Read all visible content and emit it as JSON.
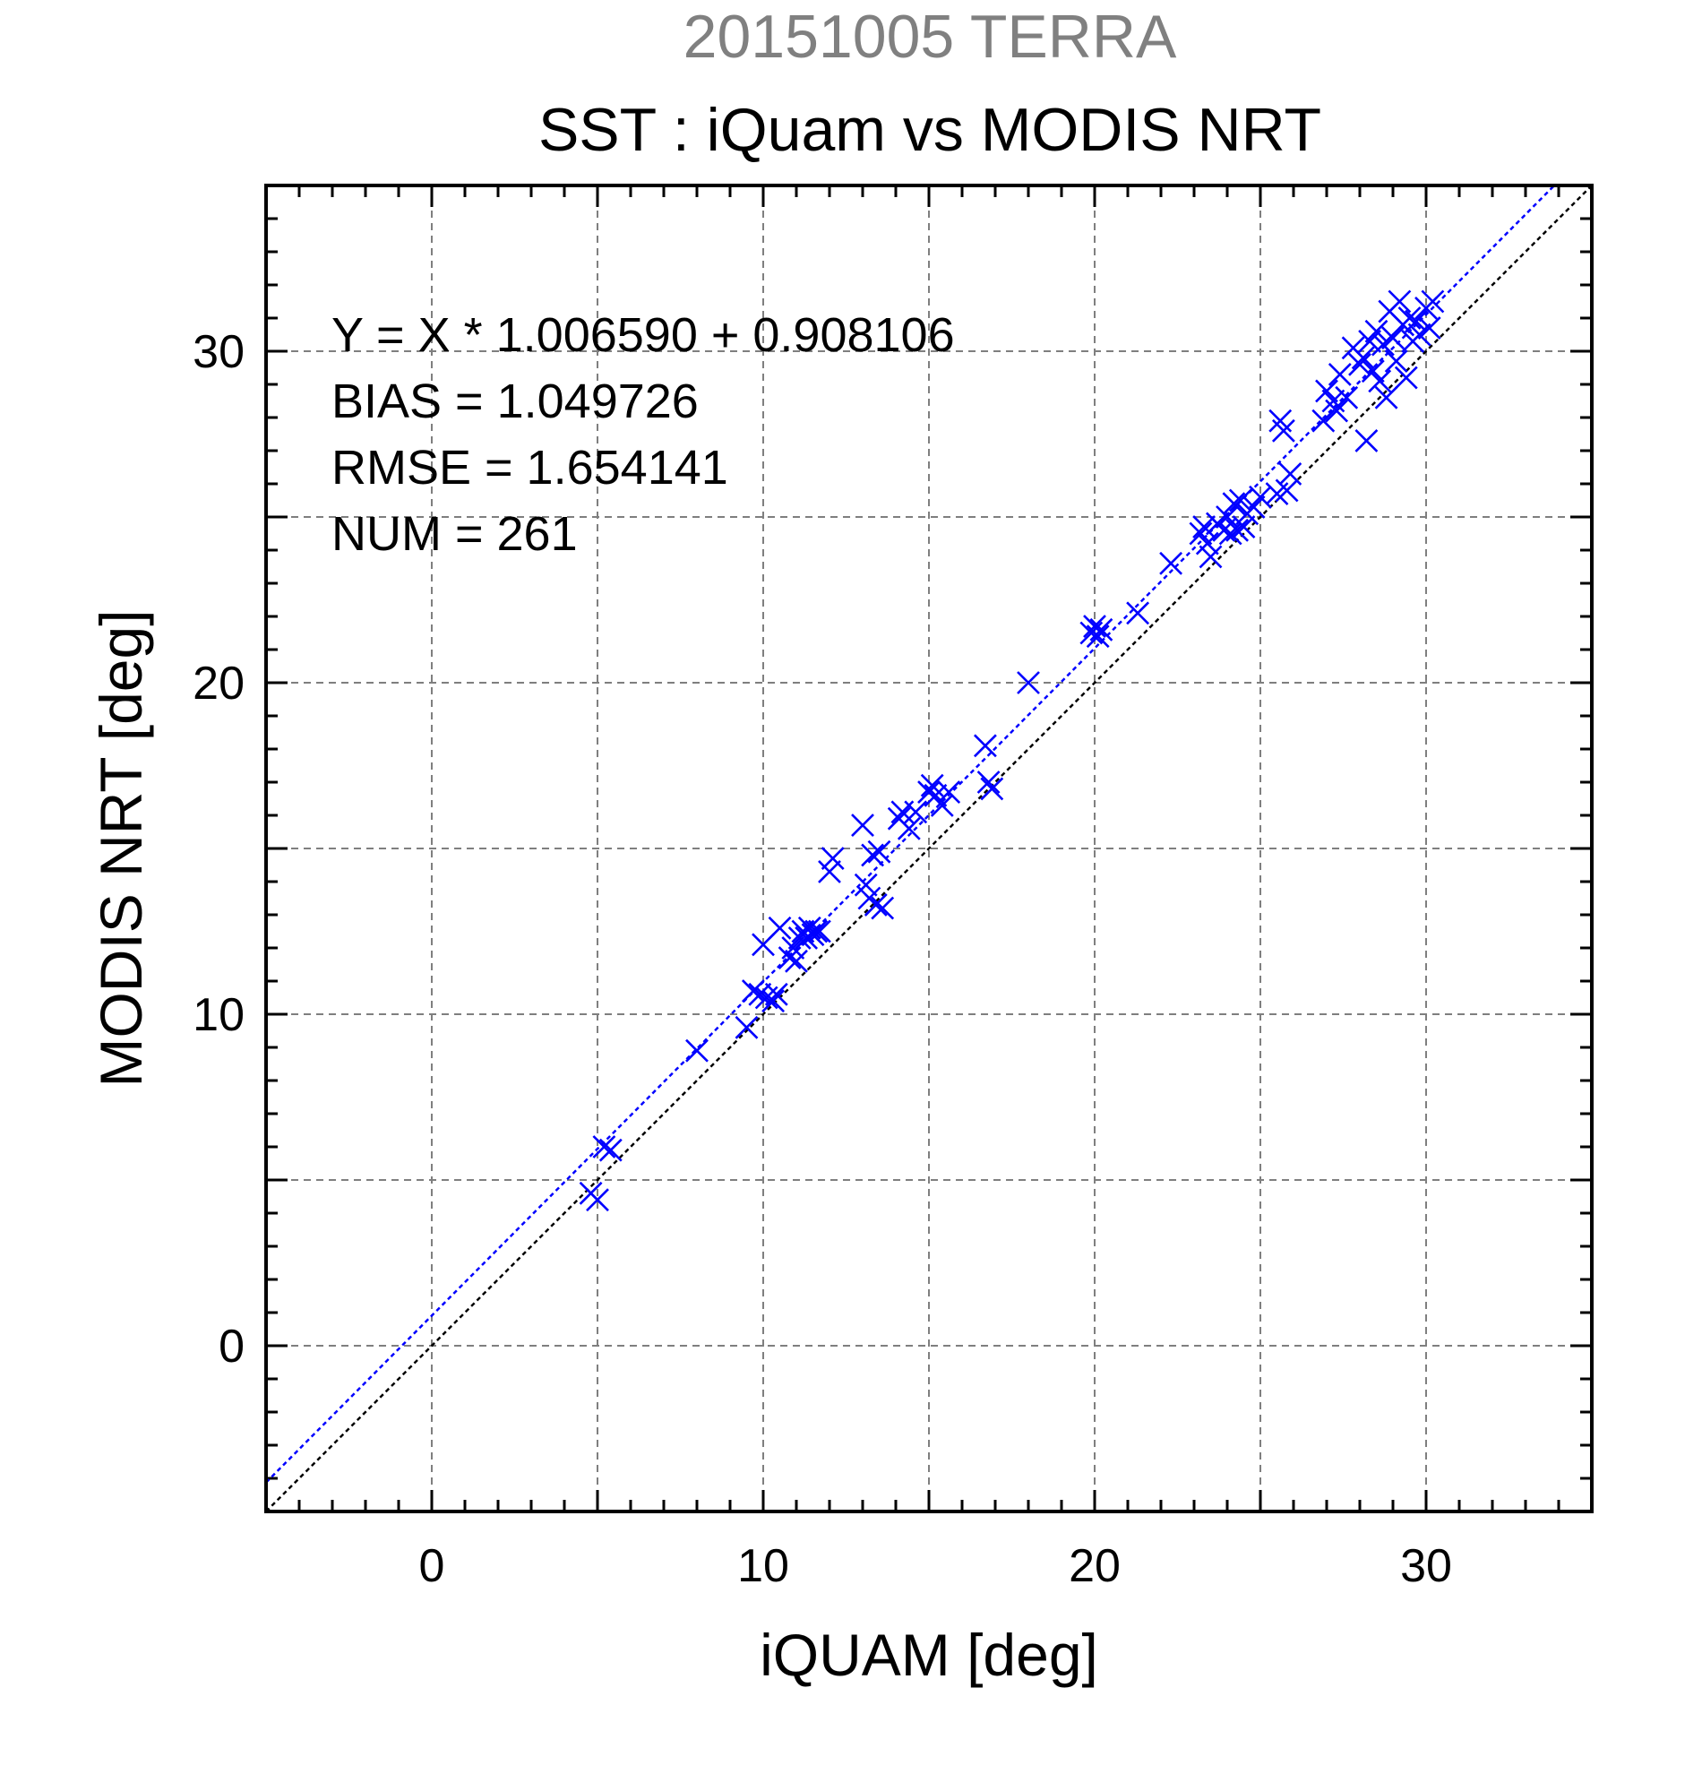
{
  "chart_data": {
    "type": "scatter",
    "title_top": "20151005 TERRA",
    "title": "SST : iQuam vs MODIS NRT",
    "xlabel": "iQUAM [deg]",
    "ylabel": "MODIS NRT [deg]",
    "xlim": [
      -5,
      35
    ],
    "ylim": [
      -5,
      35
    ],
    "x_ticks": [
      0,
      10,
      20,
      30
    ],
    "y_ticks": [
      0,
      10,
      20,
      30
    ],
    "x_tick_labels": [
      "0",
      "10",
      "20",
      "30"
    ],
    "y_tick_labels": [
      "0",
      "10",
      "20",
      "30"
    ],
    "grid": true,
    "grid_step": 5,
    "minor_tick_step": 1,
    "stats": {
      "fit": "Y = X * 1.006590 + 0.908106",
      "bias": "BIAS = 1.049726",
      "rmse": "RMSE = 1.654141",
      "num": "NUM = 261"
    },
    "lines": [
      {
        "kind": "fit",
        "slope": 1.00659,
        "intercept": 0.908106,
        "color": "#0000ff"
      },
      {
        "kind": "identity",
        "slope": 1,
        "intercept": 0,
        "color": "#000000"
      }
    ],
    "marker": "x",
    "marker_color": "#0000ff",
    "points": [
      [
        4.8,
        4.6
      ],
      [
        5.0,
        4.4
      ],
      [
        5.2,
        6.0
      ],
      [
        5.4,
        5.9
      ],
      [
        8.0,
        8.9
      ],
      [
        9.5,
        9.6
      ],
      [
        9.7,
        10.7
      ],
      [
        9.9,
        10.6
      ],
      [
        10.0,
        12.1
      ],
      [
        10.1,
        10.5
      ],
      [
        10.3,
        10.4
      ],
      [
        10.4,
        10.6
      ],
      [
        10.5,
        12.6
      ],
      [
        10.8,
        11.7
      ],
      [
        10.9,
        12.0
      ],
      [
        11.0,
        11.6
      ],
      [
        11.1,
        12.3
      ],
      [
        11.2,
        12.5
      ],
      [
        11.3,
        12.3
      ],
      [
        11.4,
        12.6
      ],
      [
        11.5,
        12.4
      ],
      [
        11.6,
        12.5
      ],
      [
        11.7,
        12.5
      ],
      [
        12.0,
        14.3
      ],
      [
        12.1,
        14.7
      ],
      [
        13.0,
        15.7
      ],
      [
        13.1,
        13.9
      ],
      [
        13.2,
        13.5
      ],
      [
        13.3,
        14.8
      ],
      [
        13.4,
        13.3
      ],
      [
        13.5,
        14.9
      ],
      [
        13.6,
        13.2
      ],
      [
        14.1,
        15.9
      ],
      [
        14.2,
        16.1
      ],
      [
        14.4,
        15.6
      ],
      [
        14.6,
        16.1
      ],
      [
        15.0,
        16.7
      ],
      [
        15.1,
        16.9
      ],
      [
        15.2,
        16.6
      ],
      [
        15.4,
        16.3
      ],
      [
        15.6,
        16.7
      ],
      [
        16.7,
        18.1
      ],
      [
        16.8,
        17.0
      ],
      [
        16.9,
        16.8
      ],
      [
        18.0,
        20.0
      ],
      [
        19.9,
        21.5
      ],
      [
        20.0,
        21.7
      ],
      [
        20.1,
        21.4
      ],
      [
        20.2,
        21.6
      ],
      [
        21.3,
        22.1
      ],
      [
        22.3,
        23.6
      ],
      [
        23.2,
        24.5
      ],
      [
        23.3,
        24.7
      ],
      [
        23.4,
        24.2
      ],
      [
        23.5,
        23.8
      ],
      [
        23.7,
        24.8
      ],
      [
        23.9,
        24.6
      ],
      [
        24.0,
        25.0
      ],
      [
        24.1,
        24.5
      ],
      [
        24.2,
        25.4
      ],
      [
        24.3,
        24.6
      ],
      [
        24.4,
        25.5
      ],
      [
        24.5,
        24.7
      ],
      [
        24.6,
        25.1
      ],
      [
        24.8,
        25.3
      ],
      [
        25.0,
        25.6
      ],
      [
        25.5,
        25.7
      ],
      [
        25.6,
        27.9
      ],
      [
        25.7,
        27.6
      ],
      [
        25.8,
        25.8
      ],
      [
        25.9,
        26.3
      ],
      [
        26.9,
        27.9
      ],
      [
        27.0,
        28.8
      ],
      [
        27.2,
        28.5
      ],
      [
        27.3,
        28.2
      ],
      [
        27.4,
        29.3
      ],
      [
        27.6,
        28.6
      ],
      [
        27.8,
        30.1
      ],
      [
        28.0,
        29.6
      ],
      [
        28.1,
        29.8
      ],
      [
        28.2,
        27.3
      ],
      [
        28.3,
        30.3
      ],
      [
        28.4,
        29.4
      ],
      [
        28.5,
        30.6
      ],
      [
        28.6,
        29.1
      ],
      [
        28.7,
        30.2
      ],
      [
        28.8,
        28.6
      ],
      [
        28.9,
        31.2
      ],
      [
        29.0,
        30.4
      ],
      [
        29.1,
        29.7
      ],
      [
        29.2,
        31.5
      ],
      [
        29.3,
        30.8
      ],
      [
        29.4,
        29.2
      ],
      [
        29.5,
        31.0
      ],
      [
        29.6,
        30.3
      ],
      [
        29.7,
        30.9
      ],
      [
        29.8,
        30.5
      ],
      [
        30.0,
        31.3
      ],
      [
        30.1,
        30.7
      ],
      [
        30.2,
        31.5
      ]
    ]
  }
}
